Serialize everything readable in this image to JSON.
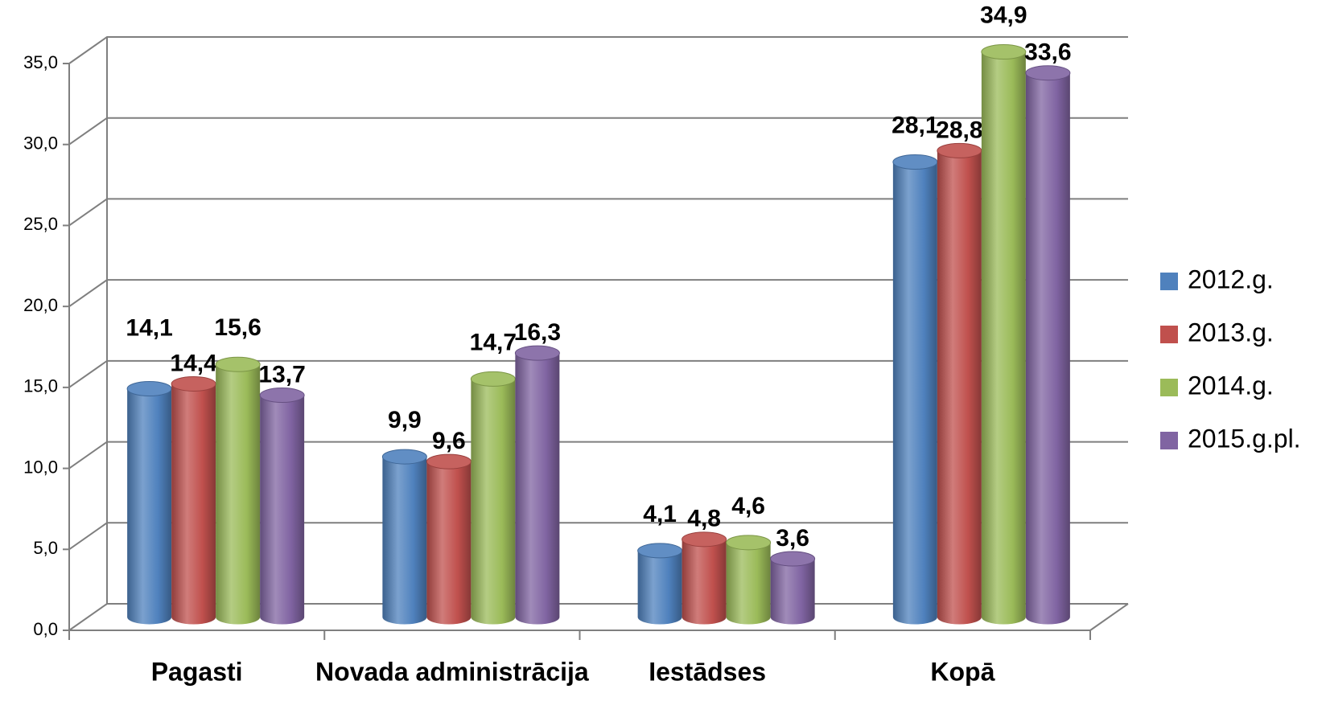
{
  "chart_data": {
    "type": "bar3d",
    "categories": [
      "Pagasti",
      "Novada administrācija",
      "Iestādses",
      "Kopā"
    ],
    "series": [
      {
        "name": "2012.g.",
        "color": "#4f81bd",
        "values": [
          14.1,
          9.9,
          4.1,
          28.1
        ],
        "value_labels": [
          "14,1",
          "9,9",
          "4,1",
          "28,1"
        ]
      },
      {
        "name": "2013.g.",
        "color": "#c0504d",
        "values": [
          14.4,
          9.6,
          4.8,
          28.8
        ],
        "value_labels": [
          "14,4",
          "9,6",
          "4,8",
          "28,8"
        ]
      },
      {
        "name": "2014.g.",
        "color": "#9bbb59",
        "values": [
          15.6,
          14.7,
          4.6,
          34.9
        ],
        "value_labels": [
          "15,6",
          "14,7",
          "4,6",
          "34,9"
        ]
      },
      {
        "name": "2015.g.pl.",
        "color": "#8064a2",
        "values": [
          13.7,
          16.3,
          3.6,
          33.6
        ],
        "value_labels": [
          "13,7",
          "16,3",
          "3,6",
          "33,6"
        ]
      }
    ],
    "ylim": [
      0,
      35
    ],
    "yticks": [
      {
        "value": 0,
        "label": "0,0"
      },
      {
        "value": 5,
        "label": "5,0"
      },
      {
        "value": 10,
        "label": "10,0"
      },
      {
        "value": 15,
        "label": "15,0"
      },
      {
        "value": 20,
        "label": "20,0"
      },
      {
        "value": 25,
        "label": "25,0"
      },
      {
        "value": 30,
        "label": "30,0"
      },
      {
        "value": 35,
        "label": "35,0"
      }
    ],
    "grid": true,
    "legend": "right"
  }
}
